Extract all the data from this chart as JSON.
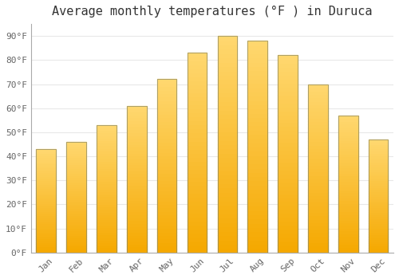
{
  "title": "Average monthly temperatures (°F ) in Duruca",
  "months": [
    "Jan",
    "Feb",
    "Mar",
    "Apr",
    "May",
    "Jun",
    "Jul",
    "Aug",
    "Sep",
    "Oct",
    "Nov",
    "Dec"
  ],
  "values": [
    43,
    46,
    53,
    61,
    72,
    83,
    90,
    88,
    82,
    70,
    57,
    47
  ],
  "bar_color_bottom": "#F5A800",
  "bar_color_top": "#FFD870",
  "bar_edge_color": "#888866",
  "ylim": [
    0,
    95
  ],
  "yticks": [
    0,
    10,
    20,
    30,
    40,
    50,
    60,
    70,
    80,
    90
  ],
  "ytick_labels": [
    "0°F",
    "10°F",
    "20°F",
    "30°F",
    "40°F",
    "50°F",
    "60°F",
    "70°F",
    "80°F",
    "90°F"
  ],
  "background_color": "#FFFFFF",
  "grid_color": "#E8E8E8",
  "title_fontsize": 11,
  "tick_fontsize": 8,
  "tick_color": "#666666",
  "font_family": "monospace",
  "bar_width": 0.65
}
